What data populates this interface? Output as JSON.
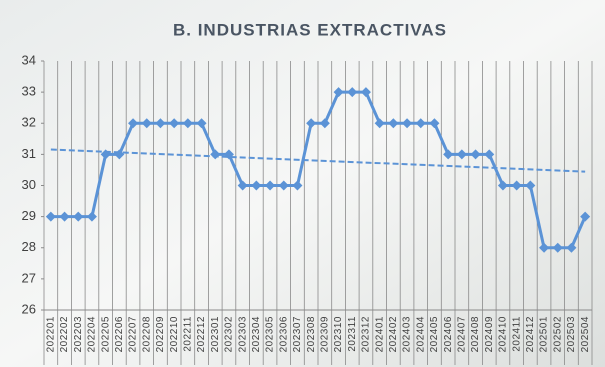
{
  "chart_data": {
    "type": "line",
    "title": "B. INDUSTRIAS EXTRACTIVAS",
    "categories": [
      "202201",
      "202202",
      "202203",
      "202204",
      "202205",
      "202206",
      "202207",
      "202208",
      "202209",
      "202210",
      "202211",
      "202212",
      "202301",
      "202302",
      "202303",
      "202304",
      "202305",
      "202306",
      "202307",
      "202308",
      "202309",
      "202310",
      "202311",
      "202312",
      "202401",
      "202402",
      "202403",
      "202404",
      "202405",
      "202406",
      "202407",
      "202408",
      "202409",
      "202410",
      "202411",
      "202412",
      "202501",
      "202502",
      "202503",
      "202504"
    ],
    "values": [
      29,
      29,
      29,
      29,
      31,
      31,
      32,
      32,
      32,
      32,
      32,
      32,
      31,
      31,
      30,
      30,
      30,
      30,
      30,
      32,
      32,
      33,
      33,
      33,
      32,
      32,
      32,
      32,
      32,
      31,
      31,
      31,
      31,
      30,
      30,
      30,
      28,
      28,
      28,
      29
    ],
    "color": "#5b93d6",
    "trendline": true,
    "ylim": [
      26,
      34
    ],
    "yticks": [
      26,
      27,
      28,
      29,
      30,
      31,
      32,
      33,
      34
    ]
  }
}
